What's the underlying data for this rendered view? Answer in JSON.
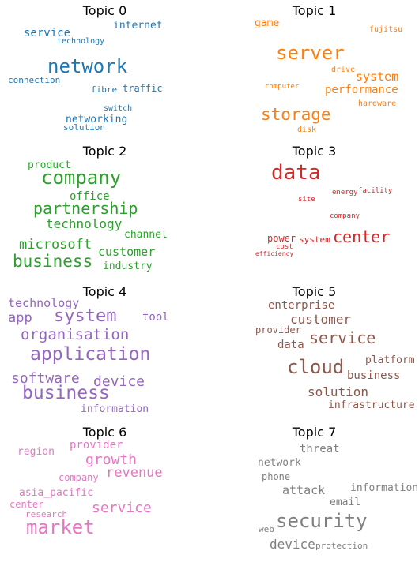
{
  "chart_data": [
    {
      "type": "wordcloud",
      "title": "Topic 0",
      "color": "#1f77b4",
      "words": [
        "network",
        "service",
        "internet",
        "technology",
        "connection",
        "fibre",
        "traffic",
        "switch",
        "networking",
        "solution"
      ]
    },
    {
      "type": "wordcloud",
      "title": "Topic 1",
      "color": "#ff7f0e",
      "words": [
        "server",
        "storage",
        "system",
        "performance",
        "game",
        "fujitsu",
        "drive",
        "computer",
        "hardware",
        "disk"
      ]
    },
    {
      "type": "wordcloud",
      "title": "Topic 2",
      "color": "#2ca02c",
      "words": [
        "company",
        "business",
        "partnership",
        "microsoft",
        "technology",
        "customer",
        "product",
        "office",
        "channel",
        "industry"
      ]
    },
    {
      "type": "wordcloud",
      "title": "Topic 3",
      "color": "#d62728",
      "words": [
        "data",
        "center",
        "energy",
        "facility",
        "site",
        "company",
        "power",
        "system",
        "cost",
        "efficiency"
      ]
    },
    {
      "type": "wordcloud",
      "title": "Topic 4",
      "color": "#9467bd",
      "words": [
        "business",
        "application",
        "system",
        "software",
        "organisation",
        "device",
        "technology",
        "app",
        "tool",
        "information"
      ]
    },
    {
      "type": "wordcloud",
      "title": "Topic 5",
      "color": "#8c564b",
      "words": [
        "cloud",
        "service",
        "customer",
        "solution",
        "enterprise",
        "data",
        "business",
        "platform",
        "provider",
        "infrastructure"
      ]
    },
    {
      "type": "wordcloud",
      "title": "Topic 6",
      "color": "#e377c2",
      "words": [
        "market",
        "growth",
        "revenue",
        "service",
        "provider",
        "region",
        "company",
        "asia_pacific",
        "center",
        "research"
      ]
    },
    {
      "type": "wordcloud",
      "title": "Topic 7",
      "color": "#7f7f7f",
      "words": [
        "security",
        "device",
        "attack",
        "threat",
        "information",
        "network",
        "phone",
        "email",
        "web",
        "protection"
      ]
    }
  ]
}
